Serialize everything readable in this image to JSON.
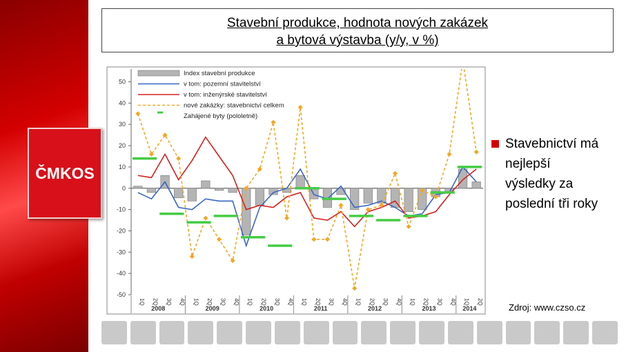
{
  "header": {
    "title_lines": [
      "Stavební produkce, hodnota nových zakázek",
      "a bytová výstavba (y/y, v %)"
    ]
  },
  "logo": "ČMKOS",
  "bullet_lines": [
    "Stavebnictví má",
    "nejlepší",
    "výsledky za",
    "poslední tři roky"
  ],
  "source": "Zdroj: www.czso.cz",
  "chart_data": {
    "type": "combo",
    "categories": [
      "1Q",
      "2Q",
      "3Q",
      "4Q",
      "1Q",
      "2Q",
      "3Q",
      "4Q",
      "1Q",
      "2Q",
      "3Q",
      "4Q",
      "1Q",
      "2Q",
      "3Q",
      "4Q",
      "1Q",
      "2Q",
      "3Q",
      "4Q",
      "1Q",
      "2Q",
      "3Q",
      "4Q",
      "1Q",
      "2Q"
    ],
    "years": [
      "2008",
      "2009",
      "2010",
      "2011",
      "2012",
      "2013",
      "2014"
    ],
    "ylim": [
      -50,
      56
    ],
    "yticks": [
      50,
      40,
      30,
      20,
      10,
      0,
      -10,
      -20,
      -30,
      -40,
      -50
    ],
    "series": [
      {
        "name": "Index stavební produkce",
        "kind": "bar",
        "color": "#b4b4b4",
        "values": [
          1,
          -2,
          6,
          -4.5,
          -6,
          3.5,
          -1,
          -2,
          -22,
          -8,
          -3,
          -2,
          6,
          -5,
          -9,
          -3,
          -10,
          -7,
          -7,
          -9,
          -11,
          -10,
          -4,
          -2,
          9,
          3
        ]
      },
      {
        "name": "v tom: pozemní stavitelství",
        "kind": "line",
        "color": "#3a66c4",
        "values": [
          -2,
          -5,
          3,
          -9,
          -10,
          -5,
          -6,
          -6,
          -27,
          -9,
          -2,
          0,
          9,
          -3,
          -5,
          1,
          -9,
          -8,
          -6,
          -9,
          -13,
          -12,
          -3,
          -2,
          10,
          3
        ]
      },
      {
        "name": "v tom: inženýrské stavitelství",
        "kind": "line",
        "color": "#d42020",
        "values": [
          6,
          5,
          16,
          4,
          13,
          24,
          15,
          6,
          -10,
          -8,
          -9,
          -4,
          -2,
          -14,
          -15,
          -11,
          -18,
          -11,
          -9,
          -6,
          -14,
          -13,
          -11,
          -3,
          4,
          9
        ]
      },
      {
        "name": "nové zakázky: stavebnictví celkem",
        "kind": "dashed",
        "color": "#f5a623",
        "values": [
          35,
          16,
          25,
          14,
          -32,
          -14,
          -24,
          -34,
          0,
          9,
          31,
          -14,
          38,
          -24,
          -24,
          -8,
          -47,
          -10,
          -8,
          7,
          -18,
          -1,
          -4,
          16,
          60,
          17
        ]
      }
    ],
    "halfyear_series": {
      "name": "Zahájené byty (pololetně)",
      "color": "#44cc44",
      "values": [
        14,
        -12,
        -16,
        -13,
        -23,
        -27,
        0,
        -5,
        -13,
        -15,
        -13,
        -2,
        10
      ]
    }
  }
}
